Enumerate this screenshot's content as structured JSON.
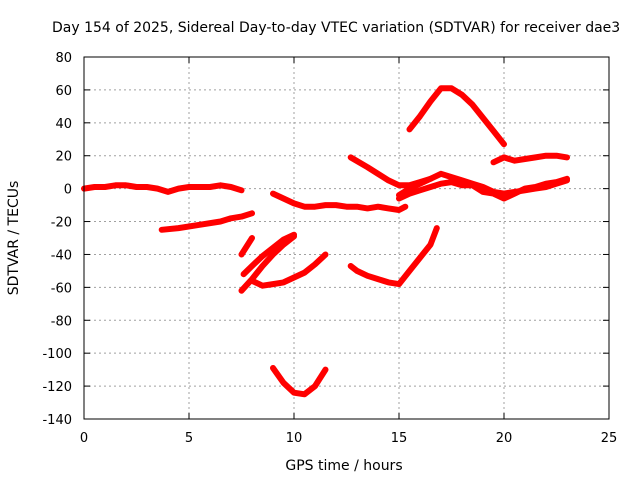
{
  "chart_data": {
    "type": "line",
    "title": "Day 154 of 2025, Sidereal Day-to-day VTEC variation (SDTVAR) for receiver dae3",
    "xlabel": "GPS time / hours",
    "ylabel": "SDTVAR / TECUs",
    "xlim": [
      0,
      25
    ],
    "ylim": [
      -140,
      80
    ],
    "xticks": [
      0,
      5,
      10,
      15,
      20,
      25
    ],
    "yticks": [
      80,
      60,
      40,
      20,
      0,
      -20,
      -40,
      -60,
      -80,
      -100,
      -120,
      -140
    ],
    "grid": true,
    "legend": "none",
    "color": "#ff0000",
    "series": [
      {
        "x": [
          0,
          0.5,
          1.0,
          1.5,
          2.0,
          2.5,
          3.0,
          3.5,
          4.0,
          4.5,
          5.0,
          5.5,
          6.0,
          6.5,
          7.0,
          7.5
        ],
        "y": [
          0,
          1,
          1,
          2,
          2,
          1,
          1,
          0,
          -2,
          0,
          1,
          1,
          1,
          2,
          1,
          -1
        ]
      },
      {
        "x": [
          3.7,
          4.5,
          5.5,
          6.5,
          7.0,
          7.5,
          8.0
        ],
        "y": [
          -25,
          -24,
          -22,
          -20,
          -18,
          -17,
          -15
        ]
      },
      {
        "x": [
          9.0,
          9.5,
          10.0,
          10.5,
          11.0,
          11.5,
          12.0,
          12.5,
          13.0,
          13.5,
          14.0,
          14.5,
          15.0,
          15.3
        ],
        "y": [
          -3,
          -6,
          -9,
          -11,
          -11,
          -10,
          -10,
          -11,
          -11,
          -12,
          -11,
          -12,
          -13,
          -11
        ]
      },
      {
        "x": [
          12.7,
          13.5,
          14.0,
          14.5,
          15.0,
          15.5,
          16.0,
          16.5
        ],
        "y": [
          19,
          13,
          9,
          5,
          2,
          2,
          4,
          6
        ]
      },
      {
        "x": [
          15.5,
          16.0,
          16.5,
          17.0,
          17.5,
          18.0,
          18.5,
          19.0,
          19.5,
          20.0
        ],
        "y": [
          36,
          44,
          53,
          61,
          61,
          57,
          51,
          43,
          35,
          27
        ]
      },
      {
        "x": [
          19.5,
          20.0,
          20.5,
          21.0,
          21.5,
          22.0,
          22.5,
          23.0
        ],
        "y": [
          16,
          19,
          17,
          18,
          19,
          20,
          20,
          19
        ]
      },
      {
        "x": [
          15.0,
          15.5,
          16.0,
          16.5,
          17.0,
          17.5,
          18.0,
          18.5,
          19.0,
          19.5,
          20.0,
          20.5,
          21.0,
          21.5,
          22.0,
          22.5,
          23.0
        ],
        "y": [
          -4,
          0,
          3,
          6,
          9,
          7,
          5,
          3,
          1,
          -2,
          -3,
          -2,
          -1,
          0,
          1,
          3,
          5
        ]
      },
      {
        "x": [
          15.0,
          15.5,
          16.0,
          16.5,
          17.0,
          17.5,
          18.0,
          18.5,
          19.0,
          19.5,
          20.0,
          20.5,
          21.0,
          21.5,
          22.0,
          22.5,
          23.0
        ],
        "y": [
          -6,
          -3,
          -1,
          1,
          3,
          4,
          2,
          2,
          -2,
          -3,
          -6,
          -3,
          0,
          1,
          3,
          4,
          6
        ]
      },
      {
        "x": [
          7.5,
          8.0
        ],
        "y": [
          -40,
          -30
        ]
      },
      {
        "x": [
          7.5,
          8.0,
          8.5,
          9.0,
          9.5,
          10.0
        ],
        "y": [
          -62,
          -55,
          -47,
          -40,
          -34,
          -29
        ]
      },
      {
        "x": [
          7.6,
          8.0,
          8.5,
          9.0,
          9.5,
          10.0
        ],
        "y": [
          -52,
          -47,
          -41,
          -36,
          -31,
          -28
        ]
      },
      {
        "x": [
          8.0,
          8.5,
          9.0,
          9.5,
          10.0,
          10.5,
          11.0,
          11.5
        ],
        "y": [
          -56,
          -59,
          -58,
          -57,
          -54,
          -51,
          -46,
          -40
        ]
      },
      {
        "x": [
          9.0,
          9.5,
          10.0,
          10.5,
          11.0,
          11.5
        ],
        "y": [
          -109,
          -118,
          -124,
          -125,
          -120,
          -110
        ]
      },
      {
        "x": [
          12.7,
          13.0,
          13.5,
          14.0,
          14.5,
          15.0,
          15.5,
          16.0,
          16.5,
          16.8
        ],
        "y": [
          -47,
          -50,
          -53,
          -55,
          -57,
          -58,
          -50,
          -42,
          -34,
          -24
        ]
      }
    ]
  }
}
